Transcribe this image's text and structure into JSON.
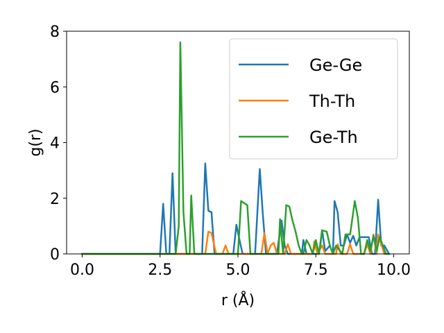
{
  "chart_data": {
    "type": "line",
    "xlabel": "r (Å)",
    "ylabel": "g(r)",
    "xlim": [
      -0.5,
      10.5
    ],
    "ylim": [
      0,
      8
    ],
    "xticks": [
      "0.0",
      "2.5",
      "5.0",
      "7.5",
      "10.0"
    ],
    "yticks": [
      "0",
      "2",
      "4",
      "6",
      "8"
    ],
    "grid": false,
    "legend_position": "top-right",
    "series": [
      {
        "name": "Ge-Ge",
        "color": "#1f77b4",
        "points": [
          [
            0,
            0
          ],
          [
            2.5,
            0
          ],
          [
            2.6,
            1.8
          ],
          [
            2.7,
            0
          ],
          [
            2.8,
            0
          ],
          [
            2.9,
            2.9
          ],
          [
            3.0,
            0
          ],
          [
            3.85,
            0
          ],
          [
            3.95,
            3.25
          ],
          [
            4.05,
            1.55
          ],
          [
            4.15,
            1.5
          ],
          [
            4.25,
            0
          ],
          [
            4.85,
            0
          ],
          [
            4.95,
            1.05
          ],
          [
            5.05,
            0.5
          ],
          [
            5.15,
            0
          ],
          [
            5.55,
            0
          ],
          [
            5.7,
            3.05
          ],
          [
            5.8,
            1.4
          ],
          [
            5.9,
            0
          ],
          [
            6.25,
            0
          ],
          [
            6.4,
            1.2
          ],
          [
            6.5,
            0.3
          ],
          [
            6.6,
            0
          ],
          [
            7.05,
            0
          ],
          [
            7.1,
            0.5
          ],
          [
            7.2,
            0
          ],
          [
            7.6,
            0
          ],
          [
            7.7,
            0.85
          ],
          [
            7.8,
            0.1
          ],
          [
            7.95,
            0.3
          ],
          [
            8.05,
            0
          ],
          [
            8.1,
            1.9
          ],
          [
            8.2,
            1.5
          ],
          [
            8.3,
            0.3
          ],
          [
            8.4,
            0.3
          ],
          [
            8.5,
            0.7
          ],
          [
            8.6,
            0.4
          ],
          [
            8.7,
            0.65
          ],
          [
            8.8,
            0.3
          ],
          [
            8.9,
            0.6
          ],
          [
            9.2,
            0.6
          ],
          [
            9.3,
            0
          ],
          [
            9.4,
            0
          ],
          [
            9.5,
            1.95
          ],
          [
            9.6,
            0.3
          ],
          [
            9.7,
            0.3
          ],
          [
            9.8,
            0.1
          ],
          [
            9.85,
            0
          ]
        ]
      },
      {
        "name": "Th-Th",
        "color": "#ff7f0e",
        "points": [
          [
            0,
            0
          ],
          [
            3.95,
            0
          ],
          [
            4.05,
            0.8
          ],
          [
            4.15,
            0.75
          ],
          [
            4.3,
            0
          ],
          [
            4.5,
            0
          ],
          [
            4.6,
            0.3
          ],
          [
            4.7,
            0
          ],
          [
            5.75,
            0
          ],
          [
            5.85,
            0.75
          ],
          [
            5.95,
            0
          ],
          [
            6.05,
            0.3
          ],
          [
            6.15,
            0.4
          ],
          [
            6.25,
            0
          ],
          [
            6.5,
            0
          ],
          [
            6.6,
            0.35
          ],
          [
            6.7,
            0
          ],
          [
            7.4,
            0
          ],
          [
            7.45,
            0.45
          ],
          [
            7.55,
            0
          ],
          [
            7.7,
            0.3
          ],
          [
            7.8,
            0
          ],
          [
            8.15,
            0
          ],
          [
            8.2,
            0.35
          ],
          [
            8.3,
            0
          ],
          [
            8.5,
            0
          ],
          [
            8.6,
            0.35
          ],
          [
            8.7,
            0
          ],
          [
            9.05,
            0
          ],
          [
            9.15,
            0.35
          ],
          [
            9.25,
            0
          ],
          [
            9.35,
            0.7
          ],
          [
            9.45,
            0
          ],
          [
            9.5,
            0.7
          ],
          [
            9.6,
            0.35
          ],
          [
            9.7,
            0
          ]
        ]
      },
      {
        "name": "Ge-Th",
        "color": "#2ca02c",
        "points": [
          [
            0,
            0
          ],
          [
            3.0,
            0
          ],
          [
            3.1,
            1.0
          ],
          [
            3.15,
            7.6
          ],
          [
            3.25,
            1.5
          ],
          [
            3.35,
            0
          ],
          [
            3.45,
            0
          ],
          [
            3.5,
            2.1
          ],
          [
            3.6,
            0
          ],
          [
            5.0,
            0
          ],
          [
            5.1,
            1.9
          ],
          [
            5.3,
            1.75
          ],
          [
            5.4,
            0
          ],
          [
            6.3,
            0
          ],
          [
            6.35,
            1.25
          ],
          [
            6.45,
            0
          ],
          [
            6.55,
            1.75
          ],
          [
            6.65,
            1.7
          ],
          [
            6.75,
            1.2
          ],
          [
            6.85,
            0.8
          ],
          [
            6.95,
            0.3
          ],
          [
            7.05,
            0
          ],
          [
            7.1,
            0
          ],
          [
            7.2,
            0.5
          ],
          [
            7.3,
            0.3
          ],
          [
            7.4,
            0
          ],
          [
            7.5,
            0.5
          ],
          [
            7.6,
            0
          ],
          [
            7.65,
            0.35
          ],
          [
            7.7,
            0.85
          ],
          [
            7.85,
            0.8
          ],
          [
            7.95,
            0.3
          ],
          [
            8.05,
            0
          ],
          [
            8.15,
            0.3
          ],
          [
            8.25,
            0.15
          ],
          [
            8.35,
            0
          ],
          [
            8.45,
            0.7
          ],
          [
            8.6,
            0.7
          ],
          [
            8.75,
            1.9
          ],
          [
            8.85,
            1.3
          ],
          [
            8.95,
            0
          ],
          [
            9.05,
            0
          ],
          [
            9.15,
            0.5
          ],
          [
            9.25,
            0.1
          ],
          [
            9.35,
            0.65
          ],
          [
            9.45,
            0.1
          ],
          [
            9.55,
            0.6
          ],
          [
            9.65,
            0.3
          ],
          [
            9.75,
            0
          ],
          [
            9.85,
            0
          ]
        ]
      }
    ]
  }
}
